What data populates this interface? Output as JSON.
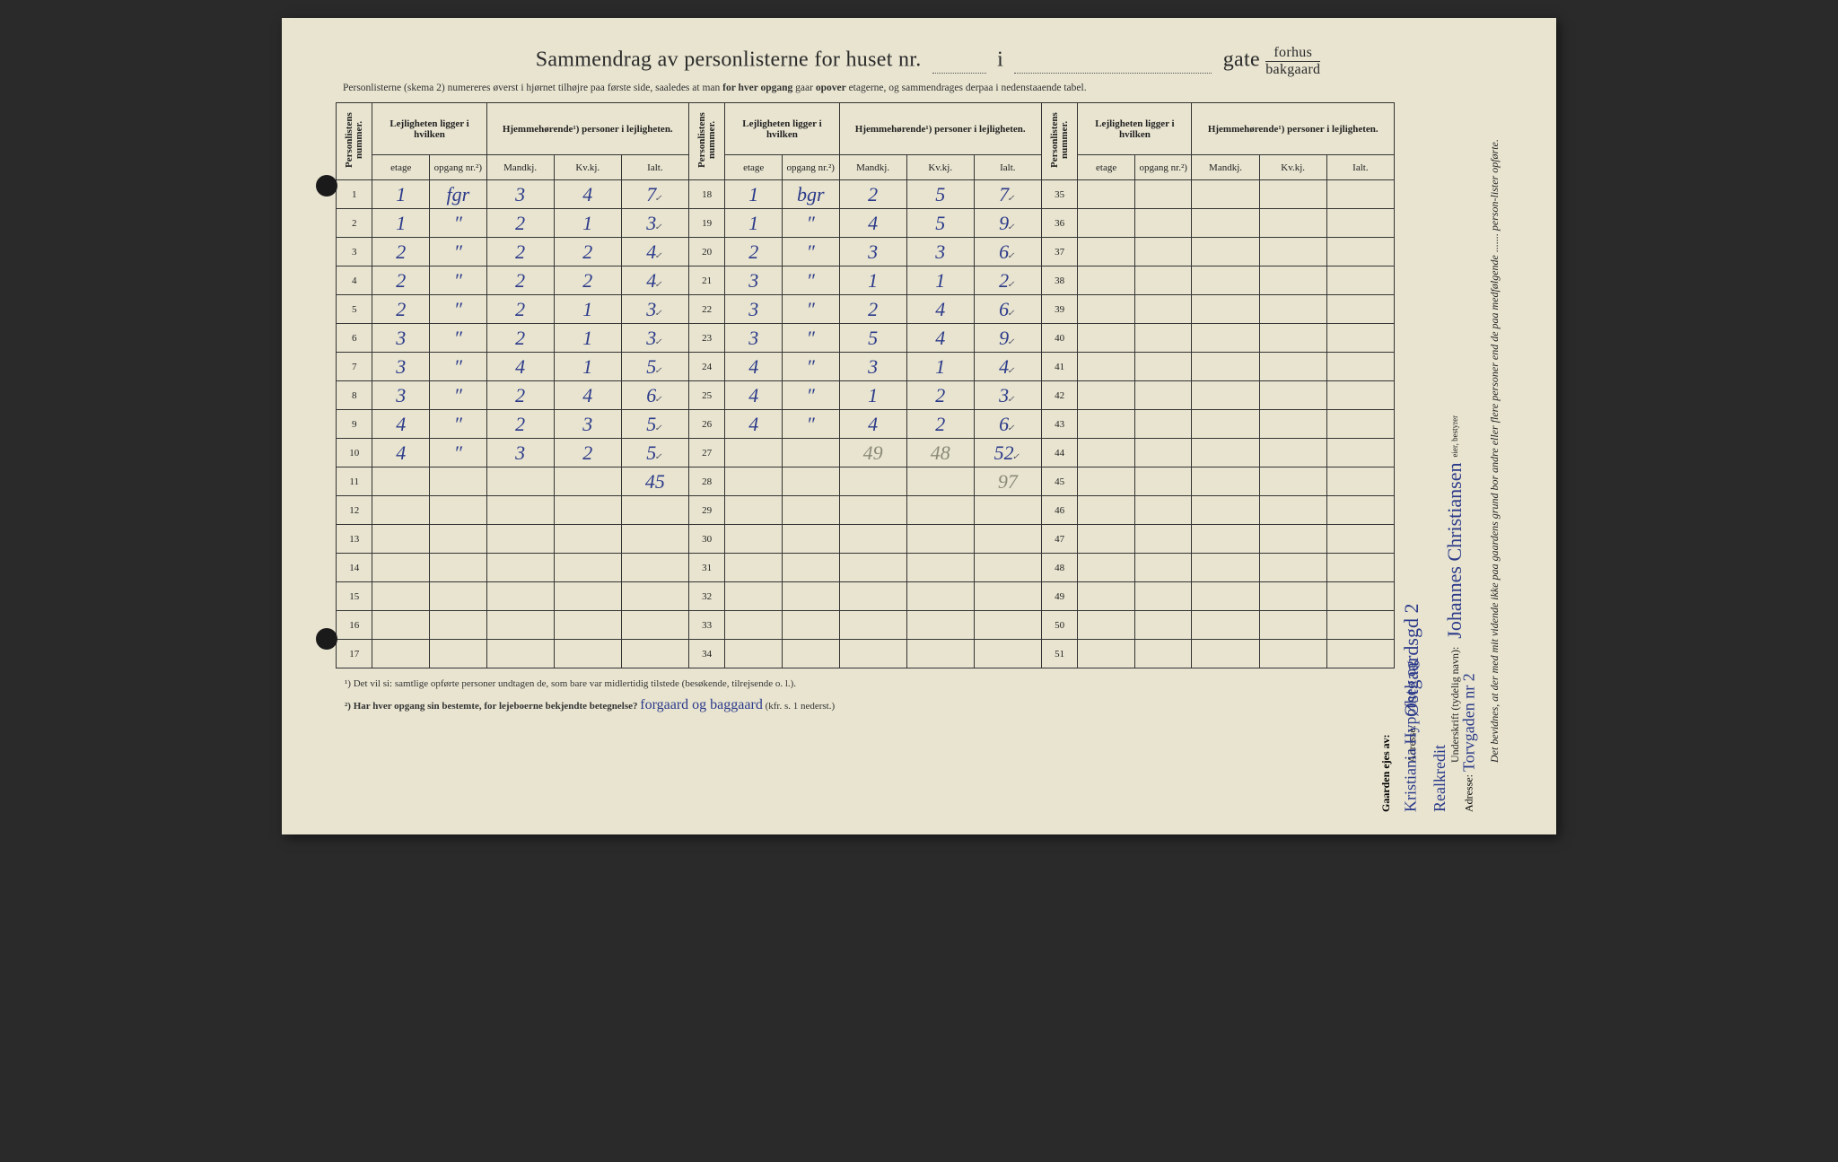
{
  "title": {
    "prefix": "Sammendrag av personlisterne for huset nr.",
    "mid": "i",
    "suffix": "gate",
    "frac_top": "forhus",
    "frac_bottom": "bakgaard"
  },
  "subtitle": "Personlisterne (skema 2) numereres øverst i hjørnet tilhøjre paa første side, saaledes at man for hver opgang gaar opover etagerne, og sammendrages derpaa i nedenstaaende tabel.",
  "headers": {
    "personlistens": "Personlistens nummer.",
    "lejlighet": "Lejligheten ligger i hvilken",
    "hjemme": "Hjemmehørende¹) personer i lejligheten.",
    "etage": "etage",
    "opgang": "opgang nr.²)",
    "mandkj": "Mandkj.",
    "kvkj": "Kv.kj.",
    "ialt": "Ialt."
  },
  "block1_rows": [
    {
      "n": "1",
      "et": "1",
      "op": "fgr",
      "m": "3",
      "k": "4",
      "i": "7"
    },
    {
      "n": "2",
      "et": "1",
      "op": "″",
      "m": "2",
      "k": "1",
      "i": "3"
    },
    {
      "n": "3",
      "et": "2",
      "op": "″",
      "m": "2",
      "k": "2",
      "i": "4"
    },
    {
      "n": "4",
      "et": "2",
      "op": "″",
      "m": "2",
      "k": "2",
      "i": "4"
    },
    {
      "n": "5",
      "et": "2",
      "op": "″",
      "m": "2",
      "k": "1",
      "i": "3"
    },
    {
      "n": "6",
      "et": "3",
      "op": "″",
      "m": "2",
      "k": "1",
      "i": "3"
    },
    {
      "n": "7",
      "et": "3",
      "op": "″",
      "m": "4",
      "k": "1",
      "i": "5"
    },
    {
      "n": "8",
      "et": "3",
      "op": "″",
      "m": "2",
      "k": "4",
      "i": "6"
    },
    {
      "n": "9",
      "et": "4",
      "op": "″",
      "m": "2",
      "k": "3",
      "i": "5"
    },
    {
      "n": "10",
      "et": "4",
      "op": "″",
      "m": "3",
      "k": "2",
      "i": "5"
    },
    {
      "n": "11",
      "et": "",
      "op": "",
      "m": "",
      "k": "",
      "i": "45"
    },
    {
      "n": "12",
      "et": "",
      "op": "",
      "m": "",
      "k": "",
      "i": ""
    },
    {
      "n": "13",
      "et": "",
      "op": "",
      "m": "",
      "k": "",
      "i": ""
    },
    {
      "n": "14",
      "et": "",
      "op": "",
      "m": "",
      "k": "",
      "i": ""
    },
    {
      "n": "15",
      "et": "",
      "op": "",
      "m": "",
      "k": "",
      "i": ""
    },
    {
      "n": "16",
      "et": "",
      "op": "",
      "m": "",
      "k": "",
      "i": ""
    },
    {
      "n": "17",
      "et": "",
      "op": "",
      "m": "",
      "k": "",
      "i": ""
    }
  ],
  "block2_rows": [
    {
      "n": "18",
      "et": "1",
      "op": "bgr",
      "m": "2",
      "k": "5",
      "i": "7"
    },
    {
      "n": "19",
      "et": "1",
      "op": "″",
      "m": "4",
      "k": "5",
      "i": "9"
    },
    {
      "n": "20",
      "et": "2",
      "op": "″",
      "m": "3",
      "k": "3",
      "i": "6"
    },
    {
      "n": "21",
      "et": "3",
      "op": "″",
      "m": "1",
      "k": "1",
      "i": "2"
    },
    {
      "n": "22",
      "et": "3",
      "op": "″",
      "m": "2",
      "k": "4",
      "i": "6"
    },
    {
      "n": "23",
      "et": "3",
      "op": "″",
      "m": "5",
      "k": "4",
      "i": "9"
    },
    {
      "n": "24",
      "et": "4",
      "op": "″",
      "m": "3",
      "k": "1",
      "i": "4"
    },
    {
      "n": "25",
      "et": "4",
      "op": "″",
      "m": "1",
      "k": "2",
      "i": "3"
    },
    {
      "n": "26",
      "et": "4",
      "op": "″",
      "m": "4",
      "k": "2",
      "i": "6"
    },
    {
      "n": "27",
      "et": "",
      "op": "",
      "m": "",
      "k": "",
      "i": "52",
      "faint_m": "49",
      "faint_k": "48"
    },
    {
      "n": "28",
      "et": "",
      "op": "",
      "m": "",
      "k": "",
      "i": "",
      "faint_i": "97"
    },
    {
      "n": "29",
      "et": "",
      "op": "",
      "m": "",
      "k": "",
      "i": ""
    },
    {
      "n": "30",
      "et": "",
      "op": "",
      "m": "",
      "k": "",
      "i": ""
    },
    {
      "n": "31",
      "et": "",
      "op": "",
      "m": "",
      "k": "",
      "i": ""
    },
    {
      "n": "32",
      "et": "",
      "op": "",
      "m": "",
      "k": "",
      "i": ""
    },
    {
      "n": "33",
      "et": "",
      "op": "",
      "m": "",
      "k": "",
      "i": ""
    },
    {
      "n": "34",
      "et": "",
      "op": "",
      "m": "",
      "k": "",
      "i": ""
    }
  ],
  "block3_nums": [
    "35",
    "36",
    "37",
    "38",
    "39",
    "40",
    "41",
    "42",
    "43",
    "44",
    "45",
    "46",
    "47",
    "48",
    "49",
    "50",
    "51"
  ],
  "footnotes": {
    "f1": "¹) Det vil si: samtlige opførte personer undtagen de, som bare var midlertidig tilstede (besøkende, tilrejsende o. l.).",
    "f2_label": "²) Har hver opgang sin bestemte, for lejeboerne bekjendte betegnelse?",
    "f2_answer": "forgaard og baggaard",
    "f2_suffix": "(kfr. s. 1 nederst.)"
  },
  "side": {
    "declaration": "Det bevidnes, at der med mit vidende ikke paa gaardens grund bor andre eller flere personer end de paa medfølgende ....... person-lister opførte.",
    "sig_label": "Underskrift (tydelig navn):",
    "sig_value": "Johannes Christiansen",
    "sig_role": "eier, bestyrer ",
    "addr_label": "Adresse:",
    "addr_value": "Østgaardsgd 2"
  },
  "owner": {
    "label": "Gaarden ejes av:",
    "name": "Kristiania Hypothek og Realkredit",
    "addr_label": "Adresse:",
    "addr_value": "Torvgaden nr 2"
  },
  "colors": {
    "paper": "#e8e4d0",
    "ink": "#2a2a2a",
    "pen": "#2b3a8a",
    "pencil": "#8a8a78"
  }
}
